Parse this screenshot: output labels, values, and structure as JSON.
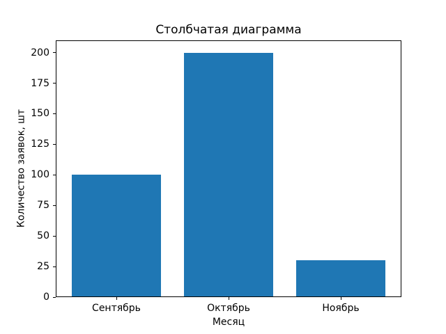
{
  "chart_data": {
    "type": "bar",
    "title": "Столбчатая диаграмма",
    "xlabel": "Месяц",
    "ylabel": "Количество заявок, шт",
    "categories": [
      "Сентябрь",
      "Октябрь",
      "Ноябрь"
    ],
    "values": [
      100,
      200,
      30
    ],
    "yticks": [
      0,
      25,
      50,
      75,
      100,
      125,
      150,
      175,
      200
    ],
    "ylim": [
      0,
      210
    ],
    "bar_color": "#1f77b4",
    "axes_background": "#ffffff",
    "spine_color": "#000000",
    "grid": false,
    "legend": "none"
  }
}
